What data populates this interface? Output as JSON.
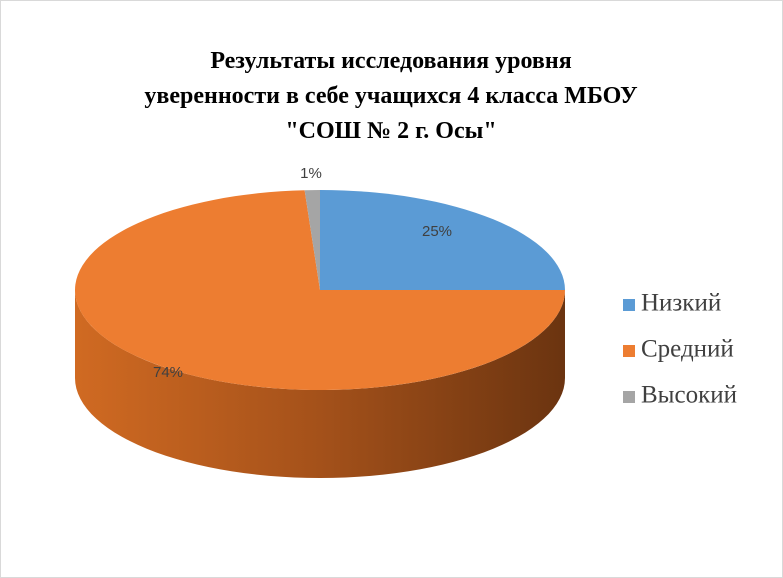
{
  "chart_data": {
    "type": "pie3d",
    "title": [
      "Результаты исследования  уровня",
      "уверенности в себе учащихся 4 класса МБОУ",
      "\"СОШ № 2 г. Осы\""
    ],
    "categories": [
      "Низкий",
      "Средний",
      "Высокий"
    ],
    "values": [
      25,
      74,
      1
    ],
    "value_labels": [
      "25%",
      "74%",
      "1%"
    ],
    "colors": [
      "#5b9bd5",
      "#ed7d31",
      "#a5a5a5"
    ],
    "legend": "right"
  }
}
